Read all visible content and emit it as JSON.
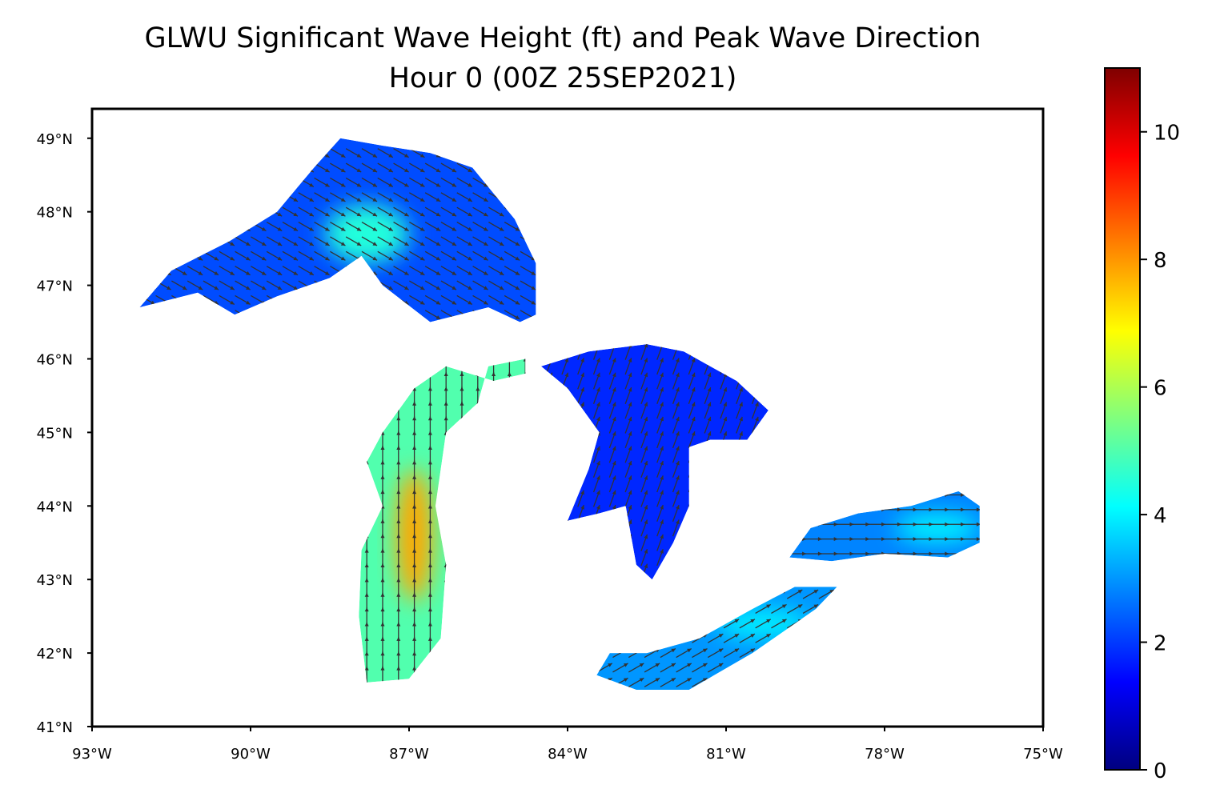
{
  "title_line1": "GLWU Significant Wave Height (ft) and Peak Wave Direction",
  "title_line2": "Hour 0 (00Z 25SEP2021)",
  "map": {
    "lon_range": [
      -93,
      -75
    ],
    "lat_range": [
      41,
      49.4
    ],
    "lon_ticks": [
      {
        "value": -93,
        "label": "93°W"
      },
      {
        "value": -90,
        "label": "90°W"
      },
      {
        "value": -87,
        "label": "87°W"
      },
      {
        "value": -84,
        "label": "84°W"
      },
      {
        "value": -81,
        "label": "81°W"
      },
      {
        "value": -78,
        "label": "78°W"
      },
      {
        "value": -75,
        "label": "75°W"
      }
    ],
    "lat_ticks": [
      {
        "value": 41,
        "label": "41°N"
      },
      {
        "value": 42,
        "label": "42°N"
      },
      {
        "value": 43,
        "label": "43°N"
      },
      {
        "value": 44,
        "label": "44°N"
      },
      {
        "value": 45,
        "label": "45°N"
      },
      {
        "value": 46,
        "label": "46°N"
      },
      {
        "value": 47,
        "label": "47°N"
      },
      {
        "value": 48,
        "label": "48°N"
      },
      {
        "value": 49,
        "label": "49°N"
      }
    ],
    "lakes": [
      {
        "name": "superior",
        "wave_height_ft": 2.2,
        "dir_deg": 120,
        "outline": [
          [
            -92.1,
            46.7
          ],
          [
            -91.0,
            46.9
          ],
          [
            -90.3,
            46.6
          ],
          [
            -89.5,
            46.85
          ],
          [
            -88.5,
            47.1
          ],
          [
            -87.9,
            47.4
          ],
          [
            -87.5,
            47.0
          ],
          [
            -86.6,
            46.5
          ],
          [
            -85.5,
            46.7
          ],
          [
            -84.9,
            46.5
          ],
          [
            -84.6,
            46.6
          ],
          [
            -84.6,
            47.3
          ],
          [
            -85.0,
            47.9
          ],
          [
            -85.8,
            48.6
          ],
          [
            -86.6,
            48.8
          ],
          [
            -87.5,
            48.9
          ],
          [
            -88.3,
            49.0
          ],
          [
            -88.8,
            48.6
          ],
          [
            -89.5,
            48.0
          ],
          [
            -90.4,
            47.6
          ],
          [
            -91.5,
            47.2
          ]
        ],
        "hot_spots": [
          {
            "lon": -87.8,
            "lat": 47.7,
            "r_lon": 0.8,
            "r_lat": 0.4,
            "wave_height_ft": 4.5
          }
        ]
      },
      {
        "name": "michigan",
        "wave_height_ft": 5.0,
        "dir_deg": 0,
        "outline": [
          [
            -87.8,
            41.6
          ],
          [
            -87.0,
            41.65
          ],
          [
            -86.4,
            42.2
          ],
          [
            -86.3,
            43.2
          ],
          [
            -86.5,
            44.0
          ],
          [
            -86.3,
            45.0
          ],
          [
            -85.7,
            45.4
          ],
          [
            -85.5,
            45.9
          ],
          [
            -84.8,
            46.0
          ],
          [
            -84.8,
            45.8
          ],
          [
            -85.4,
            45.7
          ],
          [
            -86.3,
            45.9
          ],
          [
            -86.9,
            45.6
          ],
          [
            -87.5,
            45.0
          ],
          [
            -87.8,
            44.6
          ],
          [
            -87.5,
            44.0
          ],
          [
            -87.9,
            43.4
          ],
          [
            -87.95,
            42.5
          ]
        ],
        "hot_spots": [
          {
            "lon": -86.9,
            "lat": 43.6,
            "r_lon": 0.35,
            "r_lat": 0.9,
            "wave_height_ft": 7.8
          }
        ]
      },
      {
        "name": "huron",
        "wave_height_ft": 1.8,
        "dir_deg": 20,
        "outline": [
          [
            -84.5,
            45.9
          ],
          [
            -83.6,
            46.1
          ],
          [
            -82.5,
            46.2
          ],
          [
            -81.8,
            46.1
          ],
          [
            -81.3,
            45.9
          ],
          [
            -80.8,
            45.7
          ],
          [
            -80.2,
            45.3
          ],
          [
            -80.6,
            44.9
          ],
          [
            -81.3,
            44.9
          ],
          [
            -81.7,
            44.8
          ],
          [
            -81.7,
            44.0
          ],
          [
            -82.0,
            43.5
          ],
          [
            -82.4,
            43.0
          ],
          [
            -82.7,
            43.2
          ],
          [
            -82.9,
            44.0
          ],
          [
            -83.4,
            43.9
          ],
          [
            -84.0,
            43.8
          ],
          [
            -83.6,
            44.5
          ],
          [
            -83.4,
            45.0
          ],
          [
            -84.0,
            45.6
          ]
        ],
        "hot_spots": []
      },
      {
        "name": "erie",
        "wave_height_ft": 3.0,
        "dir_deg": 60,
        "outline": [
          [
            -83.45,
            41.7
          ],
          [
            -82.7,
            41.5
          ],
          [
            -81.7,
            41.5
          ],
          [
            -80.5,
            42.0
          ],
          [
            -79.3,
            42.6
          ],
          [
            -78.9,
            42.9
          ],
          [
            -79.7,
            42.9
          ],
          [
            -80.5,
            42.6
          ],
          [
            -81.5,
            42.2
          ],
          [
            -82.5,
            42.0
          ],
          [
            -83.2,
            42.0
          ]
        ],
        "hot_spots": [
          {
            "lon": -80.3,
            "lat": 42.4,
            "r_lon": 0.9,
            "r_lat": 0.2,
            "wave_height_ft": 4.0
          }
        ]
      },
      {
        "name": "ontario",
        "wave_height_ft": 2.8,
        "dir_deg": 90,
        "outline": [
          [
            -79.8,
            43.3
          ],
          [
            -79.0,
            43.25
          ],
          [
            -78.0,
            43.35
          ],
          [
            -76.8,
            43.3
          ],
          [
            -76.2,
            43.5
          ],
          [
            -76.2,
            44.0
          ],
          [
            -76.6,
            44.2
          ],
          [
            -77.5,
            44.0
          ],
          [
            -78.5,
            43.9
          ],
          [
            -79.4,
            43.7
          ]
        ],
        "hot_spots": [
          {
            "lon": -77.0,
            "lat": 43.7,
            "r_lon": 0.8,
            "r_lat": 0.2,
            "wave_height_ft": 4.0
          }
        ]
      }
    ]
  },
  "colorbar": {
    "range": [
      0,
      11
    ],
    "ticks": [
      {
        "value": 0,
        "label": "0"
      },
      {
        "value": 2,
        "label": "2"
      },
      {
        "value": 4,
        "label": "4"
      },
      {
        "value": 6,
        "label": "6"
      },
      {
        "value": 8,
        "label": "8"
      },
      {
        "value": 10,
        "label": "10"
      }
    ],
    "colors": [
      "#00007f",
      "#0000ff",
      "#007fff",
      "#00ffff",
      "#7fff7f",
      "#ffff00",
      "#ff7f00",
      "#ff0000",
      "#7f0000"
    ]
  }
}
